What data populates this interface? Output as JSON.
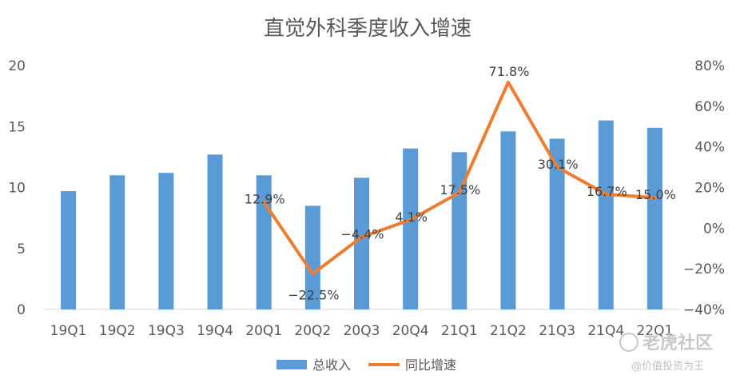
{
  "chart_data": {
    "type": "bar",
    "title": "直觉外科季度收入增速",
    "categories": [
      "19Q1",
      "19Q2",
      "19Q3",
      "19Q4",
      "20Q1",
      "20Q2",
      "20Q3",
      "20Q4",
      "21Q1",
      "21Q2",
      "21Q3",
      "21Q4",
      "22Q1"
    ],
    "series": [
      {
        "name": "总收入",
        "type": "bar",
        "axis": "left",
        "color": "#5B9BD5",
        "values": [
          9.7,
          11.0,
          11.2,
          12.7,
          11.0,
          8.5,
          10.8,
          13.2,
          12.9,
          14.6,
          14.0,
          15.5,
          14.9
        ]
      },
      {
        "name": "同比增速",
        "type": "line",
        "axis": "right",
        "color": "#ED7D31",
        "values": [
          null,
          null,
          null,
          null,
          12.9,
          -22.5,
          -4.4,
          4.1,
          17.5,
          71.8,
          30.1,
          16.7,
          15.0
        ],
        "labels": [
          "",
          "",
          "",
          "",
          "12.9%",
          "−22.5%",
          "−4.4%",
          "4.1%",
          "17.5%",
          "71.8%",
          "30.1%",
          "16.7%",
          "15.0%"
        ]
      }
    ],
    "y_left": {
      "range": [
        0,
        20
      ],
      "ticks": [
        "0",
        "5",
        "10",
        "15",
        "20"
      ]
    },
    "y_right": {
      "range": [
        -40,
        80
      ],
      "ticks": [
        "−40%",
        "−20%",
        "0%",
        "20%",
        "40%",
        "60%",
        "80%"
      ]
    },
    "grid": false,
    "legend_position": "bottom"
  },
  "watermark": {
    "main": "老虎社区",
    "sub": "@价值投资为王"
  }
}
